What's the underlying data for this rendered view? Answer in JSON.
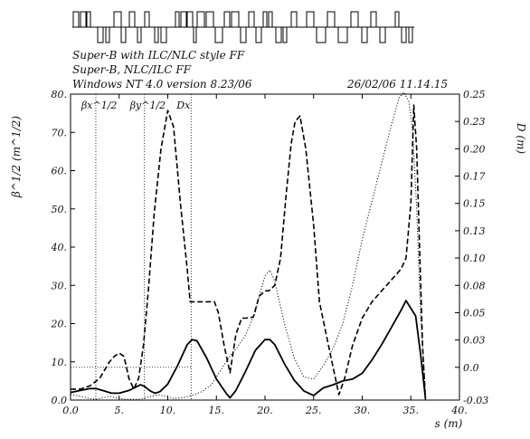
{
  "header": {
    "line1": "Super-B with ILC/NLC style FF",
    "line2": "Super-B, NLC/ILC FF",
    "line3": "Windows NT 4.0 version 8.23/06",
    "datetime": "26/02/06  11.14.15"
  },
  "chart_data": {
    "type": "line",
    "title": "",
    "xlabel": "s (m)",
    "ylabel_left": "β^1/2 (m^1/2)",
    "ylabel_right": "D (m)",
    "xlim": [
      0,
      40
    ],
    "ylim_left": [
      0,
      80
    ],
    "ylim_right": [
      -0.03,
      0.25
    ],
    "x_ticks": [
      "0.0",
      "5.",
      "10.",
      "15.",
      "20.",
      "25.",
      "30.",
      "35.",
      "40."
    ],
    "y_ticks_left": [
      "0.0",
      "10.",
      "20.",
      "30.",
      "40.",
      "50.",
      "60.",
      "70.",
      "80."
    ],
    "y_ticks_right": [
      "-0.03",
      "0.0",
      "0.03",
      "0.05",
      "0.08",
      "0.10",
      "0.13",
      "0.15",
      "0.17",
      "0.20",
      "0.23",
      "0.25"
    ],
    "y_ticks_right_values": [
      -0.03,
      0.0,
      0.025,
      0.05,
      0.075,
      0.1,
      0.125,
      0.15,
      0.175,
      0.2,
      0.225,
      0.25
    ],
    "markers": [
      {
        "label": "βx^1/2",
        "x": 2.6
      },
      {
        "label": "βy^1/2",
        "x": 7.6
      },
      {
        "label": "Dx",
        "x": 12.4
      }
    ],
    "series": [
      {
        "name": "βx^1/2",
        "style": "solid",
        "axis": "left",
        "x": [
          0,
          1,
          2,
          2.6,
          3.3,
          4.2,
          5,
          6,
          6.8,
          7.2,
          7.6,
          8.2,
          8.7,
          9.2,
          10,
          11,
          12,
          12.5,
          13,
          14,
          15,
          16,
          16.4,
          17,
          18,
          19,
          20,
          20.5,
          21,
          22,
          23,
          24,
          25,
          26,
          27,
          28,
          29,
          30,
          31,
          32,
          33,
          34,
          34.5,
          35,
          35.5,
          36,
          36.5
        ],
        "y": [
          2.0,
          2.5,
          3.0,
          3.0,
          2.5,
          1.8,
          1.8,
          2.5,
          3.5,
          4.0,
          3.6,
          2.4,
          1.8,
          2.2,
          4.2,
          9.0,
          14.5,
          15.8,
          15.5,
          11.0,
          5.5,
          1.8,
          0.6,
          2.5,
          7.5,
          13.0,
          15.8,
          15.8,
          14.5,
          9.5,
          5.2,
          2.4,
          1.2,
          3.2,
          4.0,
          5.0,
          5.5,
          7.0,
          10.5,
          14.5,
          19.0,
          23.5,
          26.0,
          24.0,
          22.0,
          12.0,
          0.5
        ]
      },
      {
        "name": "βy^1/2",
        "style": "dotted",
        "axis": "left",
        "x": [
          0,
          1,
          2,
          2.6,
          3.3,
          4,
          5,
          6,
          7,
          8,
          9,
          9.8,
          10.6,
          11.5,
          12.5,
          13.5,
          14.5,
          15.5,
          16.4,
          17.2,
          18,
          19,
          19.5,
          20,
          20.5,
          21,
          22,
          23,
          24,
          25,
          26,
          27,
          28,
          29,
          30,
          31,
          32,
          33,
          33.8,
          34.3,
          34.8,
          35.2,
          35.6,
          36,
          36.5
        ],
        "y": [
          1.5,
          1.0,
          0.4,
          0.2,
          0.6,
          1.0,
          0.4,
          0.2,
          0.2,
          0.8,
          1.4,
          1.0,
          0.4,
          0.6,
          1.2,
          2.2,
          4.0,
          8.0,
          11.5,
          14.0,
          17.0,
          23.0,
          28.0,
          32.5,
          34.0,
          31.0,
          20.0,
          11.0,
          6.0,
          5.5,
          9.0,
          13.5,
          20.0,
          30.0,
          42.0,
          52.0,
          62.0,
          72.0,
          79.0,
          80.5,
          78.0,
          70.0,
          50.0,
          22.0,
          2.0
        ]
      },
      {
        "name": "Dx",
        "style": "dashed",
        "axis": "right",
        "x": [
          0,
          1,
          2,
          3,
          4,
          4.5,
          5,
          5.5,
          6,
          6.5,
          7,
          7.5,
          8,
          8.6,
          9.3,
          10,
          10.6,
          11.3,
          12,
          12.3,
          12.8,
          13.5,
          14.3,
          14.8,
          15.2,
          15.8,
          16.4,
          17,
          17.6,
          18,
          18.8,
          19.4,
          20,
          20.4,
          21,
          21.6,
          22.2,
          22.7,
          23.1,
          23.6,
          24.2,
          25,
          25.6,
          26.3,
          27,
          27.6,
          28.2,
          29,
          30,
          31,
          32,
          33,
          34,
          34.5,
          35,
          35.3,
          35.6,
          35.9,
          36.2,
          36.5
        ],
        "y": [
          -0.02,
          -0.02,
          -0.017,
          -0.01,
          0.005,
          0.01,
          0.013,
          0.01,
          -0.01,
          -0.02,
          -0.01,
          0.02,
          0.07,
          0.14,
          0.2,
          0.235,
          0.22,
          0.15,
          0.09,
          0.06,
          0.06,
          0.06,
          0.06,
          0.06,
          0.05,
          0.02,
          -0.005,
          0.03,
          0.045,
          0.045,
          0.046,
          0.065,
          0.07,
          0.07,
          0.075,
          0.1,
          0.16,
          0.205,
          0.225,
          0.23,
          0.2,
          0.13,
          0.06,
          0.03,
          0.0,
          -0.025,
          -0.01,
          0.02,
          0.045,
          0.06,
          0.07,
          0.08,
          0.09,
          0.1,
          0.15,
          0.24,
          0.2,
          0.11,
          0.02,
          -0.03
        ]
      }
    ]
  }
}
